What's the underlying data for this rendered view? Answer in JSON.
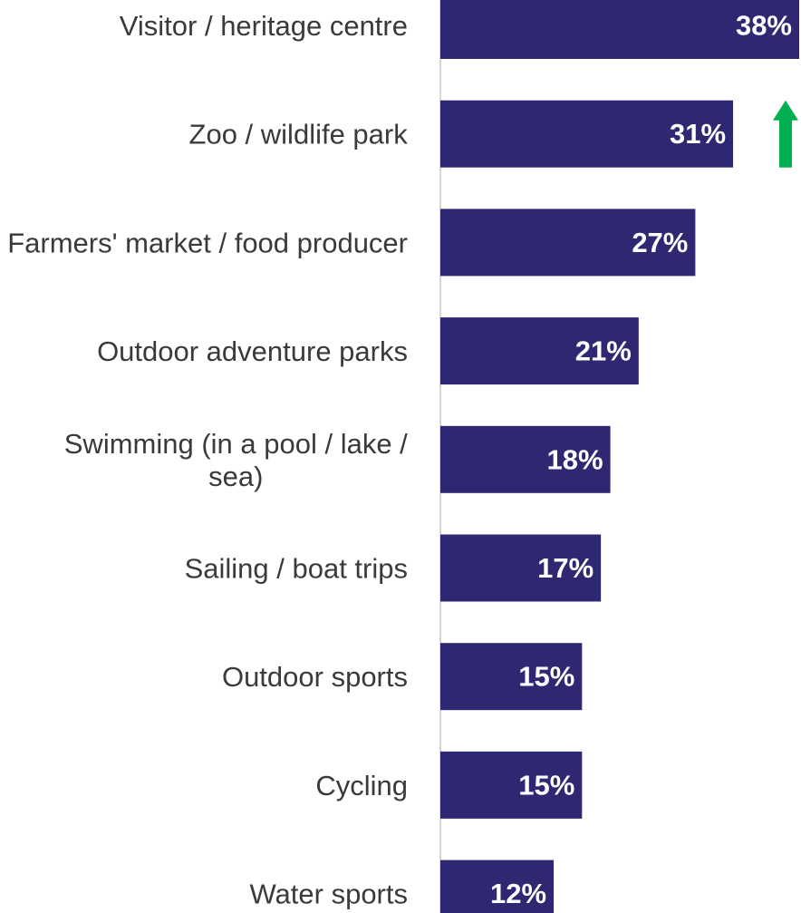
{
  "chart_data": {
    "type": "bar",
    "orientation": "horizontal",
    "categories": [
      "Visitor / heritage centre",
      "Zoo / wildlife park",
      "Farmers' market / food producer",
      "Outdoor adventure parks",
      "Swimming (in a pool / lake / sea)",
      "Sailing / boat trips",
      "Outdoor sports",
      "Cycling",
      "Water sports"
    ],
    "values": [
      38,
      31,
      27,
      21,
      18,
      17,
      15,
      15,
      12
    ],
    "value_labels": [
      "38%",
      "31%",
      "27%",
      "21%",
      "18%",
      "17%",
      "15%",
      "15%",
      "12%"
    ],
    "unit": "%",
    "xlim": [
      0,
      38
    ],
    "grid": false,
    "legend": "none",
    "annotations": [
      {
        "type": "arrow-up",
        "category": "Zoo / wildlife park",
        "color": "#00b050"
      }
    ],
    "colors": {
      "bar": "#2e2872",
      "bar_label": "#ffffff",
      "category_label": "#3a3a3a",
      "axis": "#c8c8c8",
      "arrow": "#00b050"
    }
  }
}
